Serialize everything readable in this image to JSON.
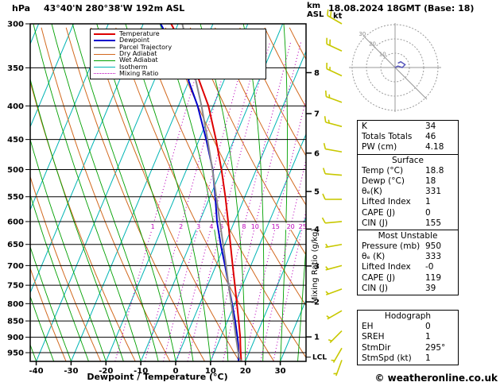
{
  "header": {
    "units_left": "hPa",
    "title": "43°40'N 280°38'W 192m ASL",
    "units_right_top": "km",
    "units_right_bottom": "ASL",
    "datetime": "18.08.2024 18GMT (Base: 18)"
  },
  "legend": {
    "items": [
      {
        "label": "Temperature",
        "color": "#dd0000",
        "style": "solid",
        "weight": 2
      },
      {
        "label": "Dewpoint",
        "color": "#0000cc",
        "style": "solid",
        "weight": 2
      },
      {
        "label": "Parcel Trajectory",
        "color": "#888888",
        "style": "solid",
        "weight": 2
      },
      {
        "label": "Dry Adiabat",
        "color": "#d2691e",
        "style": "solid",
        "weight": 1
      },
      {
        "label": "Wet Adiabat",
        "color": "#00a000",
        "style": "solid",
        "weight": 1
      },
      {
        "label": "Isotherm",
        "color": "#00b4b4",
        "style": "solid",
        "weight": 1
      },
      {
        "label": "Mixing Ratio",
        "color": "#bb00bb",
        "style": "dotted",
        "weight": 1
      }
    ]
  },
  "chart_data": {
    "type": "skew-t-log-p",
    "pressure_axis": {
      "unit": "hPa",
      "ticks": [
        300,
        350,
        400,
        450,
        500,
        550,
        600,
        650,
        700,
        750,
        800,
        850,
        900,
        950
      ],
      "top": 300,
      "bottom": 979
    },
    "temp_axis": {
      "unit": "°C",
      "ticks": [
        -40,
        -30,
        -20,
        -10,
        0,
        10,
        20,
        30
      ],
      "title": "Dewpoint / Temperature (°C)"
    },
    "km_axis": {
      "ticks": [
        {
          "km": 8,
          "p": 356
        },
        {
          "km": 7,
          "p": 411
        },
        {
          "km": 6,
          "p": 472
        },
        {
          "km": 5,
          "p": 540
        },
        {
          "km": 4,
          "p": 616
        },
        {
          "km": 3,
          "p": 701
        },
        {
          "km": 2,
          "p": 795
        },
        {
          "km": 1,
          "p": 899
        }
      ],
      "lcl": {
        "label": "LCL",
        "p": 965
      }
    },
    "mixing_ratio": {
      "axis_label": "Mixing Ratio (g/kg)",
      "values": [
        1,
        2,
        3,
        4,
        5,
        8,
        10,
        15,
        20,
        25
      ],
      "label_pressure": 610
    },
    "isotherms": {
      "start": -120,
      "end": 40,
      "step": 10
    },
    "dry_adiabats": {
      "start_c": -30,
      "end_c": 110,
      "step_c": 10
    },
    "wet_adiabats": {
      "start_c": -40,
      "end_c": 45,
      "step_c": 5
    },
    "series": [
      {
        "name": "Temperature",
        "color": "#dd0000",
        "width": 2,
        "points": [
          [
            979,
            18.8
          ],
          [
            950,
            17.6
          ],
          [
            925,
            16.6
          ],
          [
            900,
            15.6
          ],
          [
            850,
            13.2
          ],
          [
            800,
            10.6
          ],
          [
            750,
            7.8
          ],
          [
            700,
            4.8
          ],
          [
            650,
            1.6
          ],
          [
            600,
            -1.8
          ],
          [
            550,
            -5.6
          ],
          [
            500,
            -10.0
          ],
          [
            450,
            -15.2
          ],
          [
            400,
            -21.4
          ],
          [
            350,
            -30.0
          ],
          [
            300,
            -42.0
          ]
        ]
      },
      {
        "name": "Dewpoint",
        "color": "#0000cc",
        "width": 2,
        "points": [
          [
            979,
            18.0
          ],
          [
            950,
            17.0
          ],
          [
            925,
            16.0
          ],
          [
            900,
            14.8
          ],
          [
            850,
            12.2
          ],
          [
            800,
            9.2
          ],
          [
            750,
            6.0
          ],
          [
            700,
            2.6
          ],
          [
            650,
            -1.2
          ],
          [
            600,
            -5.0
          ],
          [
            550,
            -8.5
          ],
          [
            500,
            -12.5
          ],
          [
            450,
            -18.0
          ],
          [
            400,
            -24.5
          ],
          [
            350,
            -33.0
          ],
          [
            300,
            -45.0
          ]
        ]
      },
      {
        "name": "Parcel Trajectory",
        "color": "#888888",
        "width": 2,
        "points": [
          [
            979,
            18.8
          ],
          [
            965,
            17.6
          ],
          [
            950,
            16.9
          ],
          [
            900,
            14.4
          ],
          [
            850,
            11.8
          ],
          [
            800,
            9.0
          ],
          [
            750,
            6.0
          ],
          [
            700,
            2.9
          ],
          [
            650,
            -0.5
          ],
          [
            600,
            -4.2
          ],
          [
            550,
            -8.2
          ],
          [
            500,
            -12.6
          ],
          [
            450,
            -17.6
          ],
          [
            400,
            -23.4
          ],
          [
            350,
            -30.4
          ],
          [
            300,
            -38.8
          ]
        ]
      }
    ],
    "wind_barbs": {
      "color": "#c8c800",
      "x": 430,
      "barbs": [
        {
          "p": 300,
          "dir": 300,
          "spd": 20
        },
        {
          "p": 330,
          "dir": 295,
          "spd": 20
        },
        {
          "p": 360,
          "dir": 295,
          "spd": 15
        },
        {
          "p": 395,
          "dir": 290,
          "spd": 15
        },
        {
          "p": 430,
          "dir": 285,
          "spd": 15
        },
        {
          "p": 470,
          "dir": 280,
          "spd": 10
        },
        {
          "p": 510,
          "dir": 275,
          "spd": 10
        },
        {
          "p": 555,
          "dir": 270,
          "spd": 10
        },
        {
          "p": 600,
          "dir": 265,
          "spd": 10
        },
        {
          "p": 650,
          "dir": 260,
          "spd": 5
        },
        {
          "p": 700,
          "dir": 255,
          "spd": 5
        },
        {
          "p": 760,
          "dir": 250,
          "spd": 5
        },
        {
          "p": 820,
          "dir": 240,
          "spd": 5
        },
        {
          "p": 880,
          "dir": 225,
          "spd": 5
        },
        {
          "p": 935,
          "dir": 210,
          "spd": 5
        },
        {
          "p": 975,
          "dir": 200,
          "spd": 2
        }
      ]
    }
  },
  "hodograph": {
    "unit_label": "kt",
    "rings_kt": [
      10,
      20,
      30
    ],
    "trace_uv_kt": [
      [
        0,
        0
      ],
      [
        2,
        1
      ],
      [
        5,
        0
      ],
      [
        7,
        2
      ],
      [
        4,
        4
      ],
      [
        2,
        3
      ]
    ]
  },
  "stats": {
    "sections": [
      {
        "id": "indices",
        "title": "",
        "gap_before": false,
        "rows": [
          [
            "K",
            "34"
          ],
          [
            "Totals Totals",
            "46"
          ],
          [
            "PW (cm)",
            "4.18"
          ]
        ]
      },
      {
        "id": "surface",
        "title": "Surface",
        "gap_before": false,
        "rows": [
          [
            "Temp (°C)",
            "18.8"
          ],
          [
            "Dewp (°C)",
            "18"
          ],
          [
            "θₑ(K)",
            "331"
          ],
          [
            "Lifted Index",
            "1"
          ],
          [
            "CAPE (J)",
            "0"
          ],
          [
            "CIN (J)",
            "155"
          ]
        ]
      },
      {
        "id": "most-unstable",
        "title": "Most Unstable",
        "gap_before": false,
        "rows": [
          [
            "Pressure (mb)",
            "950"
          ],
          [
            "θₑ (K)",
            "333"
          ],
          [
            "Lifted Index",
            "-0"
          ],
          [
            "CAPE (J)",
            "119"
          ],
          [
            "CIN (J)",
            "39"
          ]
        ]
      },
      {
        "id": "hodograph",
        "title": "Hodograph",
        "gap_before": true,
        "rows": [
          [
            "EH",
            "0"
          ],
          [
            "SREH",
            "1"
          ],
          [
            "StmDir",
            "295°"
          ],
          [
            "StmSpd (kt)",
            "1"
          ]
        ]
      }
    ]
  },
  "footer": {
    "copyright": "© weatheronline.co.uk"
  },
  "colors": {
    "isotherm": "#00b4b4",
    "dry_adiabat": "#d2691e",
    "wet_adiabat": "#00a000",
    "mixing_ratio": "#bb00bb",
    "temperature": "#dd0000",
    "dewpoint": "#0000cc",
    "parcel": "#888888",
    "barb": "#c8c800",
    "grid": "#000000",
    "hodo_grid": "#999999"
  }
}
